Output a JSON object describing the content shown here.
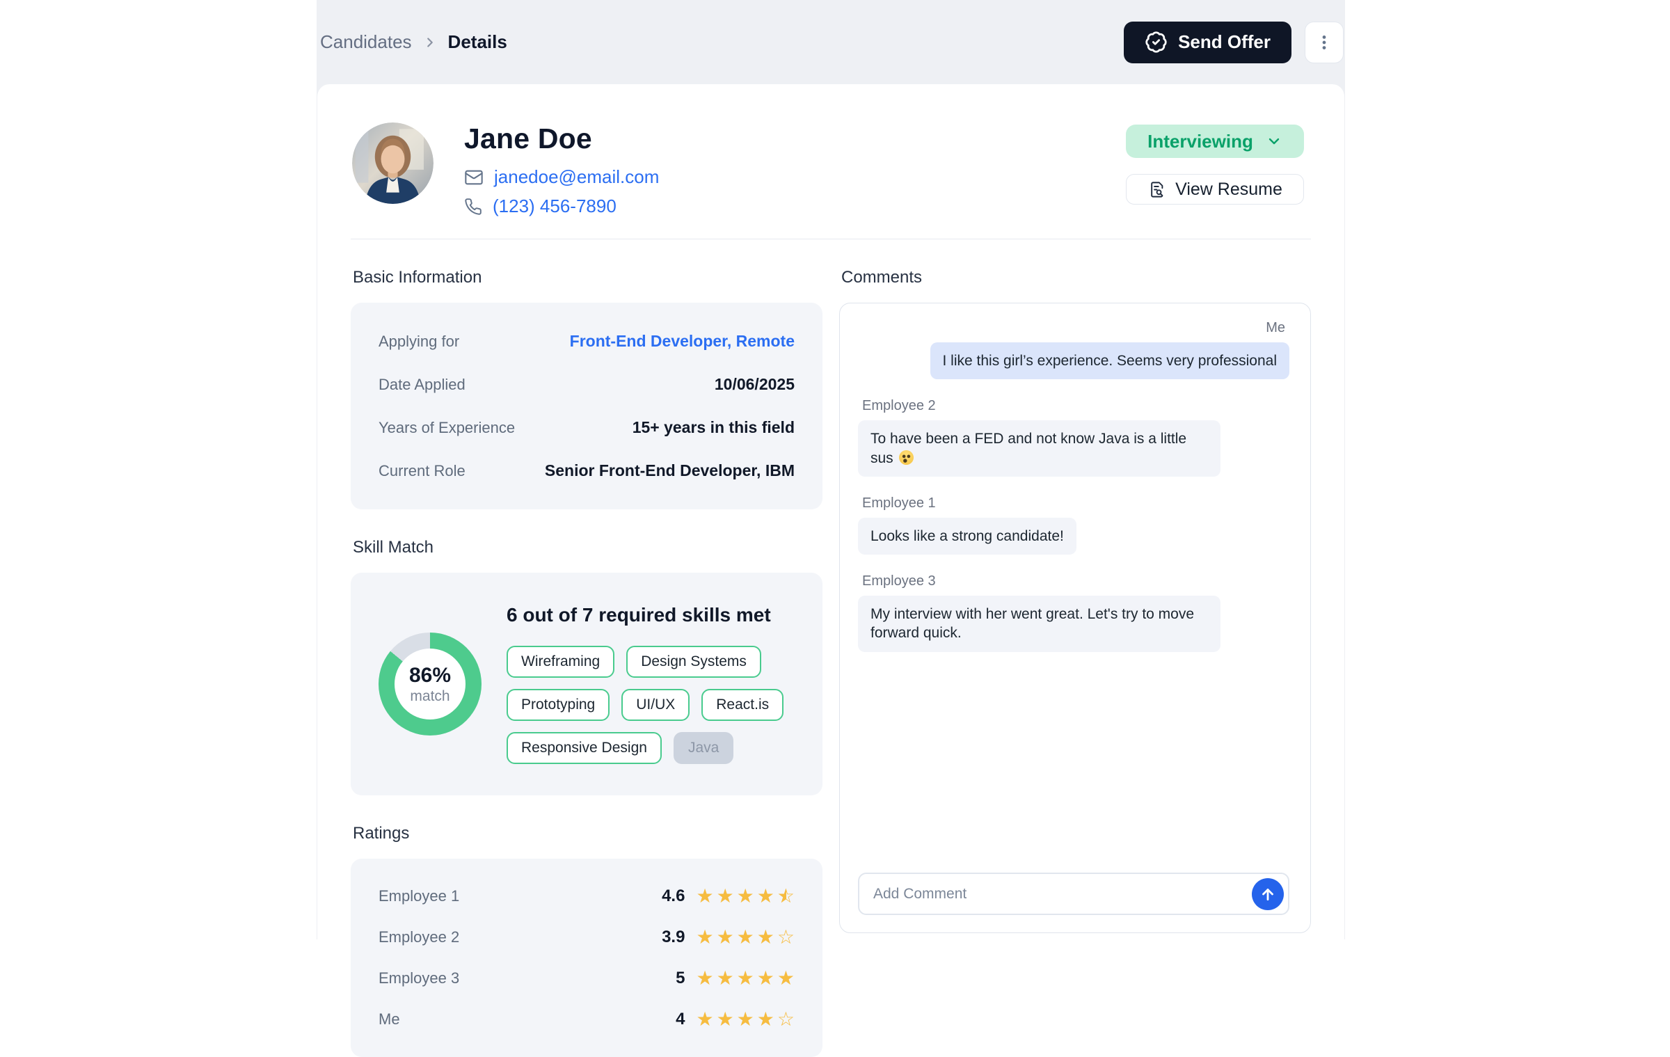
{
  "colors": {
    "accent_link_blue": "#2b6ef2",
    "status_green_bg": "#c6f0dc",
    "status_green_text": "#0aa169",
    "skill_green": "#49cb8e",
    "donut_green": "#4ecb8d",
    "donut_track": "#d9dee6",
    "star_amber": "#f6bc40",
    "send_offer_dark": "#0f1626",
    "self_bubble_blue": "#dbe5fb",
    "panel_gray": "#f3f5f9"
  },
  "breadcrumb": {
    "items": [
      "Candidates",
      "Details"
    ]
  },
  "topbar": {
    "send_offer": "Send Offer"
  },
  "profile": {
    "name": "Jane Doe",
    "email": "janedoe@email.com",
    "phone": "(123) 456-7890",
    "status": "Interviewing",
    "view_resume": "View Resume"
  },
  "basic_info": {
    "title": "Basic Information",
    "rows": [
      {
        "label": "Applying for",
        "value": "Front-End Developer, Remote",
        "link": true
      },
      {
        "label": "Date Applied",
        "value": "10/06/2025",
        "link": false
      },
      {
        "label": "Years of Experience",
        "value": "15+ years in this field",
        "link": false
      },
      {
        "label": "Current Role",
        "value": "Senior Front-End Developer, IBM",
        "link": false
      }
    ]
  },
  "skill_match": {
    "title": "Skill Match",
    "percent": 86,
    "percent_text": "86%",
    "percent_sub": "match",
    "headline": "6 out of 7 required skills met",
    "skills": [
      {
        "label": "Wireframing",
        "met": true
      },
      {
        "label": "Design Systems",
        "met": true
      },
      {
        "label": "Prototyping",
        "met": true
      },
      {
        "label": "UI/UX",
        "met": true
      },
      {
        "label": "React.is",
        "met": true
      },
      {
        "label": "Responsive Design",
        "met": true
      },
      {
        "label": "Java",
        "met": false
      }
    ]
  },
  "ratings": {
    "title": "Ratings",
    "rows": [
      {
        "name": "Employee 1",
        "value": "4.6",
        "stars": 4.6
      },
      {
        "name": "Employee 2",
        "value": "3.9",
        "stars": 3.9
      },
      {
        "name": "Employee 3",
        "value": "5",
        "stars": 5
      },
      {
        "name": "Me",
        "value": "4",
        "stars": 4
      }
    ]
  },
  "comments": {
    "title": "Comments",
    "messages": [
      {
        "author": "Me",
        "text": "I like this girl’s experience. Seems very professional",
        "self": true
      },
      {
        "author": "Employee 2",
        "text": "To have been a FED and not know Java is a little sus 🤔",
        "self": false
      },
      {
        "author": "Employee 1",
        "text": "Looks like a strong candidate!",
        "self": false
      },
      {
        "author": "Employee 3",
        "text": "My interview with her went great. Let's try to move forward quick.",
        "self": false
      }
    ],
    "input_placeholder": "Add Comment"
  }
}
